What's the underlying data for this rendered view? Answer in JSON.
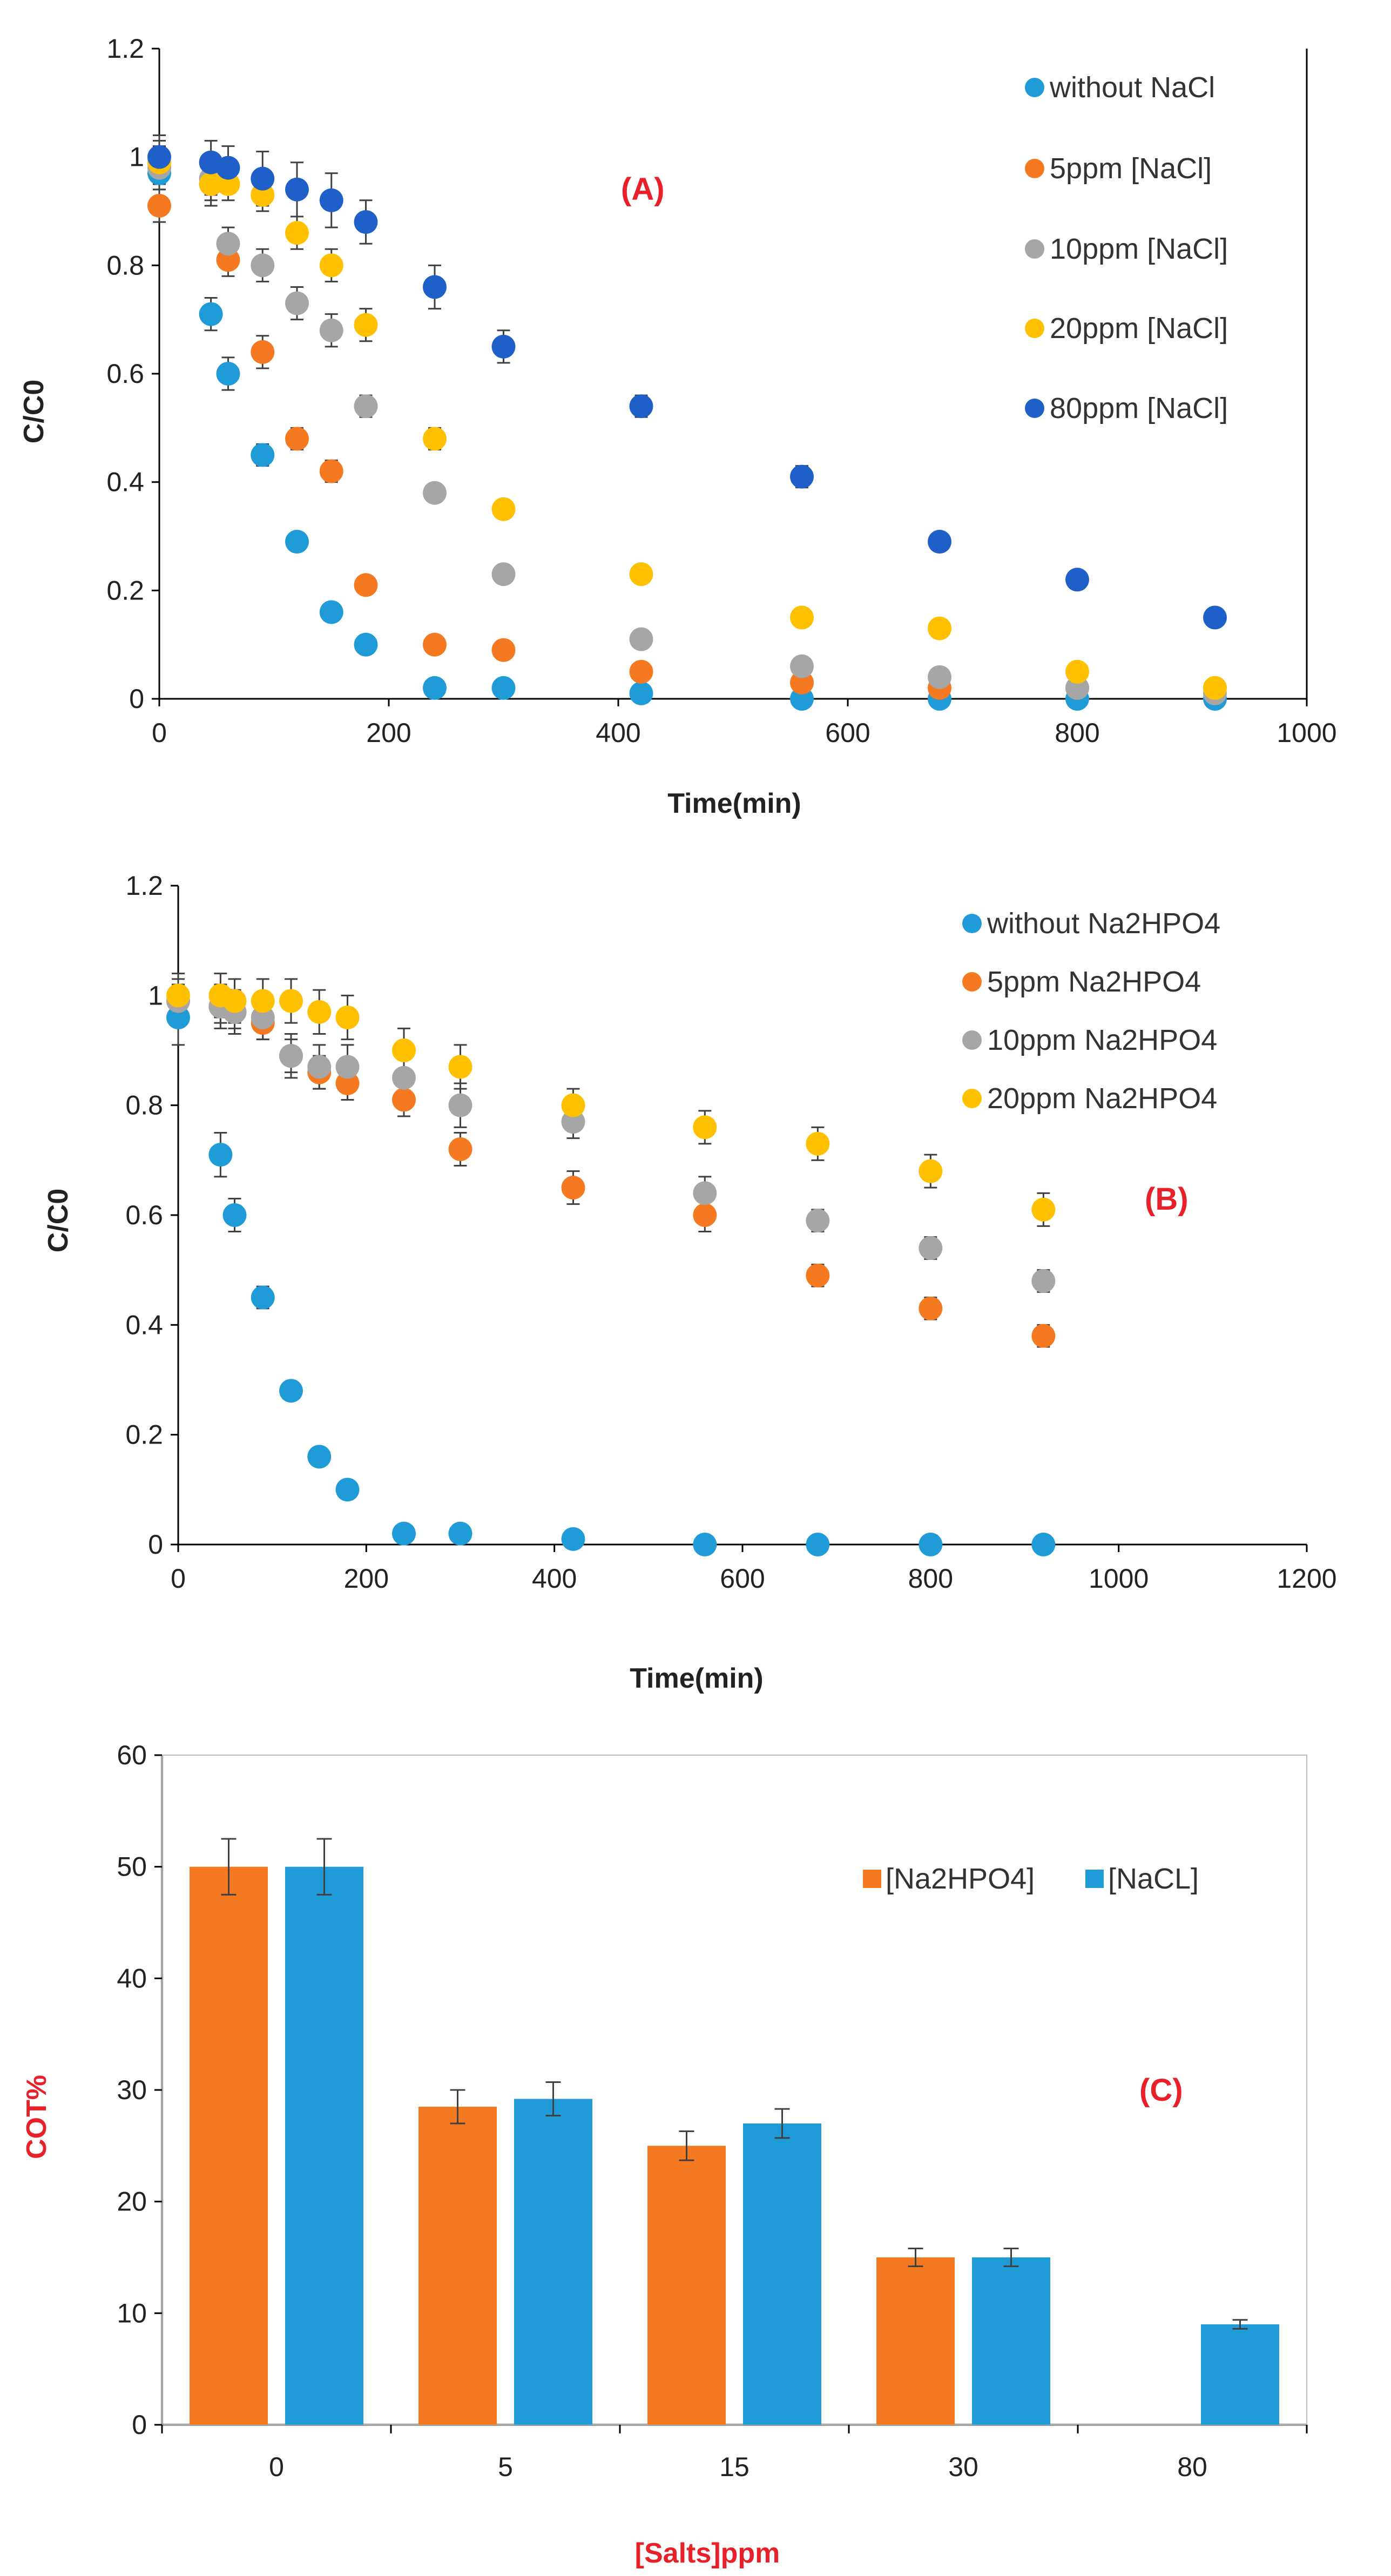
{
  "chart_data": [
    {
      "type": "scatter",
      "panel": "A",
      "title": "",
      "annotation": "(A)",
      "xlabel": "Time(min)",
      "ylabel": "C/C0",
      "xlim": [
        0,
        1000
      ],
      "ylim": [
        0,
        1.2
      ],
      "xticks": [
        0,
        200,
        400,
        600,
        800,
        1000
      ],
      "yticks": [
        0,
        0.2,
        0.4,
        0.6,
        0.8,
        1,
        1.2
      ],
      "legend_position": "top-right",
      "series": [
        {
          "name": "without NaCl",
          "color": "#1f9bd7",
          "x": [
            0,
            45,
            60,
            90,
            120,
            150,
            180,
            240,
            300,
            420,
            560,
            680,
            800,
            920
          ],
          "y": [
            0.97,
            0.71,
            0.6,
            0.45,
            0.29,
            0.16,
            0.1,
            0.02,
            0.02,
            0.01,
            0.0,
            0.0,
            0.0,
            0.0
          ],
          "err": [
            0.02,
            0.03,
            0.03,
            0.02,
            0.01,
            0.01,
            0.01,
            0.01,
            0.01,
            0.01,
            0.0,
            0.0,
            0.0,
            0.0
          ]
        },
        {
          "name": "5ppm [NaCl]",
          "color": "#f47920",
          "x": [
            0,
            45,
            60,
            90,
            120,
            150,
            180,
            240,
            300,
            420,
            560,
            680,
            800,
            920
          ],
          "y": [
            0.91,
            0.95,
            0.81,
            0.64,
            0.48,
            0.42,
            0.21,
            0.1,
            0.09,
            0.05,
            0.03,
            0.02,
            0.02,
            0.02
          ],
          "err": [
            0.03,
            0.03,
            0.03,
            0.03,
            0.02,
            0.02,
            0.01,
            0.01,
            0.01,
            0.01,
            0.01,
            0.01,
            0.01,
            0.01
          ]
        },
        {
          "name": "10ppm [NaCl]",
          "color": "#a6a6a6",
          "x": [
            0,
            45,
            60,
            90,
            120,
            150,
            180,
            240,
            300,
            420,
            560,
            680,
            800,
            920
          ],
          "y": [
            0.98,
            0.96,
            0.84,
            0.8,
            0.73,
            0.68,
            0.54,
            0.38,
            0.23,
            0.11,
            0.06,
            0.04,
            0.02,
            0.01
          ],
          "err": [
            0.04,
            0.03,
            0.03,
            0.03,
            0.03,
            0.03,
            0.02,
            0.01,
            0.01,
            0.01,
            0.01,
            0.01,
            0.01,
            0.01
          ]
        },
        {
          "name": "20ppm [NaCl]",
          "color": "#ffc000",
          "x": [
            0,
            45,
            60,
            90,
            120,
            150,
            180,
            240,
            300,
            420,
            560,
            680,
            800,
            920
          ],
          "y": [
            0.99,
            0.95,
            0.95,
            0.93,
            0.86,
            0.8,
            0.69,
            0.48,
            0.35,
            0.23,
            0.15,
            0.13,
            0.05,
            0.02
          ],
          "err": [
            0.04,
            0.04,
            0.03,
            0.03,
            0.03,
            0.03,
            0.03,
            0.02,
            0.01,
            0.01,
            0.01,
            0.01,
            0.01,
            0.01
          ]
        },
        {
          "name": "80ppm [NaCl]",
          "color": "#1f5fc8",
          "x": [
            0,
            45,
            60,
            90,
            120,
            150,
            180,
            240,
            300,
            420,
            560,
            680,
            800,
            920
          ],
          "y": [
            1.0,
            0.99,
            0.98,
            0.96,
            0.94,
            0.92,
            0.88,
            0.76,
            0.65,
            0.54,
            0.41,
            0.29,
            0.22,
            0.15
          ],
          "err": [
            0.04,
            0.04,
            0.04,
            0.05,
            0.05,
            0.05,
            0.04,
            0.04,
            0.03,
            0.02,
            0.02,
            0.01,
            0.01,
            0.01
          ]
        }
      ]
    },
    {
      "type": "scatter",
      "panel": "B",
      "title": "",
      "annotation": "(B)",
      "xlabel": "Time(min)",
      "ylabel": "C/C0",
      "xlim": [
        0,
        1200
      ],
      "ylim": [
        0,
        1.2
      ],
      "xticks": [
        0,
        200,
        400,
        600,
        800,
        1000,
        1200
      ],
      "yticks": [
        0,
        0.2,
        0.4,
        0.6,
        0.8,
        1,
        1.2
      ],
      "legend_position": "top-right",
      "series": [
        {
          "name": "without Na2HPO4",
          "color": "#1f9bd7",
          "x": [
            0,
            45,
            60,
            90,
            120,
            150,
            180,
            240,
            300,
            420,
            560,
            680,
            800,
            920
          ],
          "y": [
            0.96,
            0.71,
            0.6,
            0.45,
            0.28,
            0.16,
            0.1,
            0.02,
            0.02,
            0.01,
            0.0,
            0.0,
            0.0,
            0.0
          ],
          "err": [
            0.05,
            0.04,
            0.03,
            0.02,
            0.01,
            0.01,
            0.01,
            0.0,
            0.0,
            0.0,
            0.0,
            0.0,
            0.0,
            0.0
          ]
        },
        {
          "name": "5ppm Na2HPO4",
          "color": "#f47920",
          "x": [
            0,
            45,
            60,
            90,
            120,
            150,
            180,
            240,
            300,
            420,
            560,
            680,
            800,
            920
          ],
          "y": [
            0.99,
            0.98,
            0.97,
            0.95,
            0.89,
            0.86,
            0.84,
            0.81,
            0.72,
            0.65,
            0.6,
            0.49,
            0.43,
            0.38
          ],
          "err": [
            0.03,
            0.03,
            0.03,
            0.03,
            0.03,
            0.03,
            0.03,
            0.03,
            0.03,
            0.03,
            0.03,
            0.02,
            0.02,
            0.02
          ]
        },
        {
          "name": "10ppm Na2HPO4",
          "color": "#a6a6a6",
          "x": [
            0,
            45,
            60,
            90,
            120,
            150,
            180,
            240,
            300,
            420,
            560,
            680,
            800,
            920
          ],
          "y": [
            0.99,
            0.98,
            0.97,
            0.96,
            0.89,
            0.87,
            0.87,
            0.85,
            0.8,
            0.77,
            0.64,
            0.59,
            0.54,
            0.48
          ],
          "err": [
            0.04,
            0.04,
            0.04,
            0.04,
            0.04,
            0.04,
            0.04,
            0.04,
            0.04,
            0.03,
            0.03,
            0.02,
            0.02,
            0.02
          ]
        },
        {
          "name": "20ppm Na2HPO4",
          "color": "#ffc000",
          "x": [
            0,
            45,
            60,
            90,
            120,
            150,
            180,
            240,
            300,
            420,
            560,
            680,
            800,
            920
          ],
          "y": [
            1.0,
            1.0,
            0.99,
            0.99,
            0.99,
            0.97,
            0.96,
            0.9,
            0.87,
            0.8,
            0.76,
            0.73,
            0.68,
            0.61
          ],
          "err": [
            0.04,
            0.04,
            0.04,
            0.04,
            0.04,
            0.04,
            0.04,
            0.04,
            0.04,
            0.03,
            0.03,
            0.03,
            0.03,
            0.03
          ]
        }
      ]
    },
    {
      "type": "bar",
      "panel": "C",
      "title": "",
      "annotation": "(C)",
      "xlabel": "[Salts]ppm",
      "ylabel": "COT%",
      "categories": [
        "0",
        "5",
        "15",
        "30",
        "80"
      ],
      "ylim": [
        0,
        60
      ],
      "yticks": [
        0,
        10,
        20,
        30,
        40,
        50,
        60
      ],
      "legend_position": "top-right",
      "series": [
        {
          "name": "[Na2HPO4]",
          "color": "#f47920",
          "values": [
            50,
            28.5,
            25,
            15,
            null
          ],
          "err": [
            2.5,
            1.5,
            1.3,
            0.8,
            null
          ]
        },
        {
          "name": "[NaCL]",
          "color": "#1f9bd7",
          "values": [
            50,
            29.2,
            27,
            15,
            9
          ],
          "err": [
            2.5,
            1.5,
            1.3,
            0.8,
            0.4
          ]
        }
      ]
    }
  ]
}
